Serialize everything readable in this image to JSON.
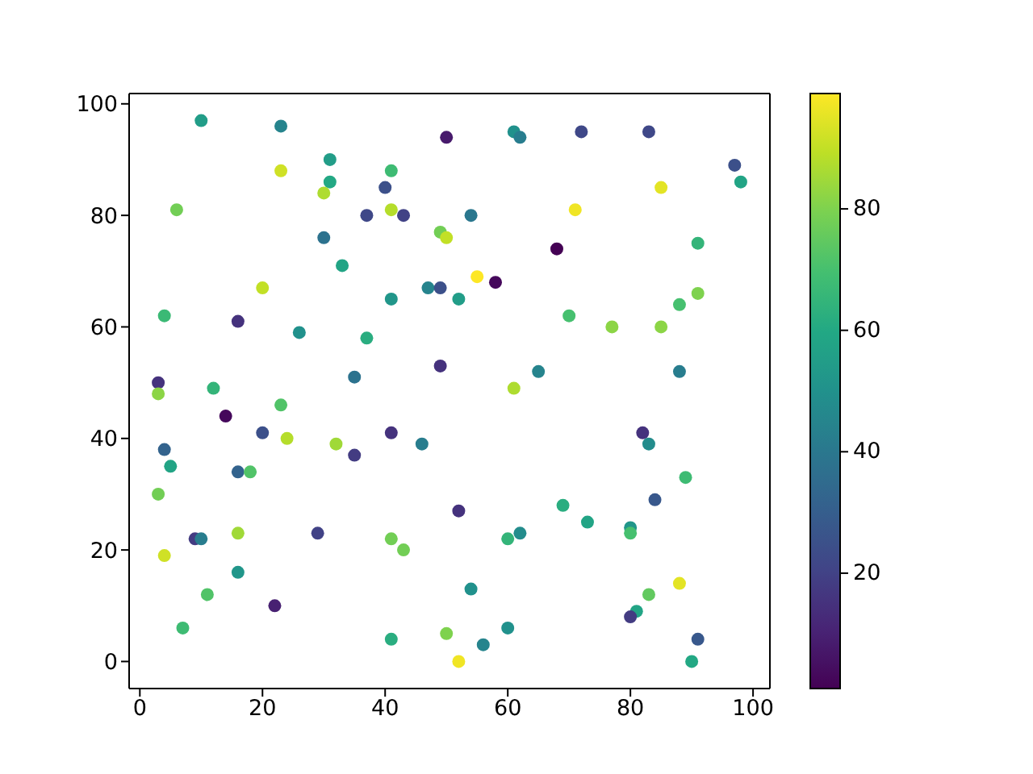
{
  "chart_data": {
    "type": "scatter",
    "x": [
      10,
      23,
      50,
      31,
      23,
      41,
      31,
      40,
      30,
      6,
      37,
      41,
      43,
      30,
      49,
      50,
      33,
      20,
      47,
      49,
      41,
      52,
      4,
      16,
      26,
      37,
      35,
      49,
      3,
      12,
      61,
      62,
      72,
      83,
      97,
      98,
      85,
      71,
      54,
      91,
      68,
      55,
      58,
      91,
      88,
      70,
      77,
      85,
      65,
      88,
      61,
      3,
      14,
      23,
      20,
      24,
      32,
      35,
      41,
      46,
      4,
      5,
      16,
      18,
      3,
      9,
      10,
      16,
      29,
      41,
      43,
      4,
      16,
      11,
      22,
      7,
      41,
      50,
      82,
      83,
      89,
      84,
      52,
      69,
      73,
      80,
      80,
      62,
      60,
      54,
      88,
      83,
      81,
      80,
      91,
      90,
      56,
      60,
      52
    ],
    "values": [
      97,
      96,
      94,
      90,
      88,
      88,
      86,
      85,
      84,
      81,
      80,
      81,
      80,
      76,
      77,
      76,
      71,
      67,
      67,
      67,
      65,
      65,
      62,
      61,
      59,
      58,
      51,
      53,
      50,
      49,
      95,
      94,
      95,
      95,
      89,
      86,
      85,
      81,
      80,
      75,
      74,
      69,
      68,
      66,
      64,
      62,
      60,
      60,
      52,
      52,
      49,
      48,
      44,
      46,
      41,
      40,
      39,
      37,
      41,
      39,
      38,
      35,
      34,
      34,
      30,
      22,
      22,
      23,
      23,
      22,
      20,
      19,
      16,
      12,
      10,
      6,
      4,
      5,
      41,
      39,
      33,
      29,
      27,
      28,
      25,
      24,
      23,
      23,
      22,
      13,
      14,
      12,
      9,
      8,
      4,
      0,
      3,
      6,
      0
    ],
    "cvalues": [
      55,
      45,
      8,
      55,
      92,
      68,
      60,
      25,
      87,
      78,
      22,
      88,
      20,
      38,
      78,
      90,
      58,
      90,
      45,
      25,
      52,
      55,
      67,
      15,
      50,
      62,
      38,
      15,
      15,
      65,
      50,
      42,
      22,
      22,
      25,
      58,
      95,
      97,
      40,
      65,
      1,
      99,
      3,
      80,
      70,
      70,
      82,
      82,
      45,
      42,
      87,
      82,
      3,
      72,
      25,
      88,
      85,
      18,
      15,
      42,
      32,
      58,
      32,
      72,
      78,
      18,
      42,
      85,
      20,
      78,
      78,
      92,
      52,
      72,
      10,
      68,
      62,
      80,
      15,
      48,
      68,
      28,
      15,
      62,
      58,
      52,
      70,
      48,
      65,
      50,
      95,
      75,
      58,
      18,
      28,
      60,
      45,
      50,
      97
    ],
    "xlim": [
      -1.75,
      102.75
    ],
    "ylim": [
      -4.85,
      101.85
    ],
    "xticks": [
      0,
      20,
      40,
      60,
      80,
      100
    ],
    "yticks": [
      0,
      20,
      40,
      60,
      80,
      100
    ],
    "clim": [
      1,
      99
    ],
    "cticks": [
      20,
      40,
      60,
      80
    ],
    "marker": "circle"
  }
}
